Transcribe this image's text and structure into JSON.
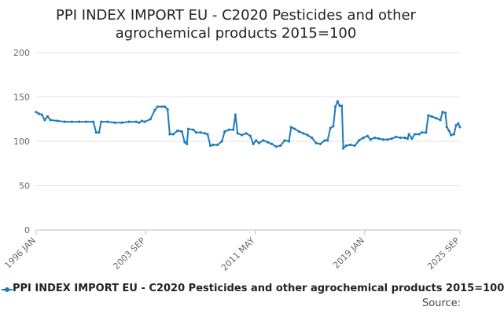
{
  "chart_data": {
    "type": "line",
    "title": "PPI INDEX IMPORT EU - C2020 Pesticides and other agrochemical products 2015=100",
    "title_lines": [
      "PPI INDEX IMPORT EU - C2020 Pesticides and other",
      "agrochemical products 2015=100"
    ],
    "xlabel": "",
    "ylabel": "",
    "ylim": [
      0,
      200
    ],
    "yticks": [
      0,
      50,
      100,
      150,
      200
    ],
    "xlim": [
      1996.0,
      2025.67
    ],
    "xtick_labels": [
      {
        "x": 1996.0,
        "label": "1996 JAN"
      },
      {
        "x": 2003.67,
        "label": "2003 SEP"
      },
      {
        "x": 2011.33,
        "label": "2011 MAY"
      },
      {
        "x": 2019.0,
        "label": "2019 JAN"
      },
      {
        "x": 2025.67,
        "label": "2025 SEP"
      }
    ],
    "grid": true,
    "legend_position": "bottom",
    "series": [
      {
        "name": "PPI INDEX IMPORT EU - C2020 Pesticides and other agrochemical products 2015=100",
        "color": "#1f7bbd",
        "points": [
          [
            1996.0,
            133
          ],
          [
            1996.2,
            131
          ],
          [
            1996.4,
            130
          ],
          [
            1996.6,
            124
          ],
          [
            1996.8,
            128
          ],
          [
            1997.0,
            124
          ],
          [
            1997.5,
            123
          ],
          [
            1998.0,
            122
          ],
          [
            1998.5,
            122
          ],
          [
            1999.0,
            122
          ],
          [
            1999.5,
            122
          ],
          [
            2000.0,
            122
          ],
          [
            2000.2,
            110
          ],
          [
            2000.4,
            110
          ],
          [
            2000.55,
            122
          ],
          [
            2001.0,
            122
          ],
          [
            2001.5,
            121
          ],
          [
            2002.0,
            121
          ],
          [
            2002.5,
            122
          ],
          [
            2003.0,
            122
          ],
          [
            2003.2,
            121
          ],
          [
            2003.4,
            123
          ],
          [
            2003.6,
            122
          ],
          [
            2004.0,
            125
          ],
          [
            2004.3,
            135
          ],
          [
            2004.5,
            139
          ],
          [
            2004.8,
            139
          ],
          [
            2005.0,
            139
          ],
          [
            2005.2,
            136
          ],
          [
            2005.35,
            108
          ],
          [
            2005.6,
            108
          ],
          [
            2005.9,
            112
          ],
          [
            2006.2,
            111
          ],
          [
            2006.4,
            99
          ],
          [
            2006.55,
            97
          ],
          [
            2006.65,
            114
          ],
          [
            2007.0,
            113
          ],
          [
            2007.2,
            110
          ],
          [
            2007.5,
            110
          ],
          [
            2007.8,
            109
          ],
          [
            2008.0,
            108
          ],
          [
            2008.2,
            95
          ],
          [
            2008.4,
            96
          ],
          [
            2008.7,
            96
          ],
          [
            2009.0,
            100
          ],
          [
            2009.2,
            111
          ],
          [
            2009.5,
            113
          ],
          [
            2009.8,
            113
          ],
          [
            2009.95,
            130
          ],
          [
            2010.1,
            109
          ],
          [
            2010.4,
            107
          ],
          [
            2010.7,
            109
          ],
          [
            2011.0,
            106
          ],
          [
            2011.2,
            97
          ],
          [
            2011.4,
            101
          ],
          [
            2011.6,
            98
          ],
          [
            2011.9,
            101
          ],
          [
            2012.2,
            99
          ],
          [
            2012.5,
            97
          ],
          [
            2012.8,
            94
          ],
          [
            2013.1,
            95
          ],
          [
            2013.4,
            101
          ],
          [
            2013.7,
            100
          ],
          [
            2013.85,
            116
          ],
          [
            2014.1,
            114
          ],
          [
            2014.4,
            111
          ],
          [
            2014.7,
            109
          ],
          [
            2015.0,
            107
          ],
          [
            2015.3,
            104
          ],
          [
            2015.6,
            98
          ],
          [
            2015.9,
            97
          ],
          [
            2016.2,
            101
          ],
          [
            2016.4,
            101
          ],
          [
            2016.6,
            115
          ],
          [
            2016.8,
            117
          ],
          [
            2016.95,
            139
          ],
          [
            2017.1,
            145
          ],
          [
            2017.25,
            140
          ],
          [
            2017.4,
            140
          ],
          [
            2017.5,
            92
          ],
          [
            2017.7,
            95
          ],
          [
            2018.0,
            96
          ],
          [
            2018.3,
            95
          ],
          [
            2018.6,
            101
          ],
          [
            2018.9,
            104
          ],
          [
            2019.2,
            106
          ],
          [
            2019.4,
            102
          ],
          [
            2019.7,
            104
          ],
          [
            2020.0,
            103
          ],
          [
            2020.3,
            102
          ],
          [
            2020.6,
            102
          ],
          [
            2020.9,
            103
          ],
          [
            2021.2,
            105
          ],
          [
            2021.5,
            104
          ],
          [
            2021.8,
            104
          ],
          [
            2022.0,
            103
          ],
          [
            2022.1,
            108
          ],
          [
            2022.3,
            103
          ],
          [
            2022.5,
            108
          ],
          [
            2022.8,
            108
          ],
          [
            2023.0,
            110
          ],
          [
            2023.3,
            110
          ],
          [
            2023.45,
            129
          ],
          [
            2023.7,
            128
          ],
          [
            2024.0,
            126
          ],
          [
            2024.3,
            124
          ],
          [
            2024.45,
            133
          ],
          [
            2024.65,
            132
          ],
          [
            2024.75,
            116
          ],
          [
            2024.9,
            112
          ],
          [
            2025.05,
            107
          ],
          [
            2025.25,
            108
          ],
          [
            2025.4,
            118
          ],
          [
            2025.55,
            120
          ],
          [
            2025.67,
            116
          ]
        ]
      }
    ],
    "source_label": "Source:"
  }
}
